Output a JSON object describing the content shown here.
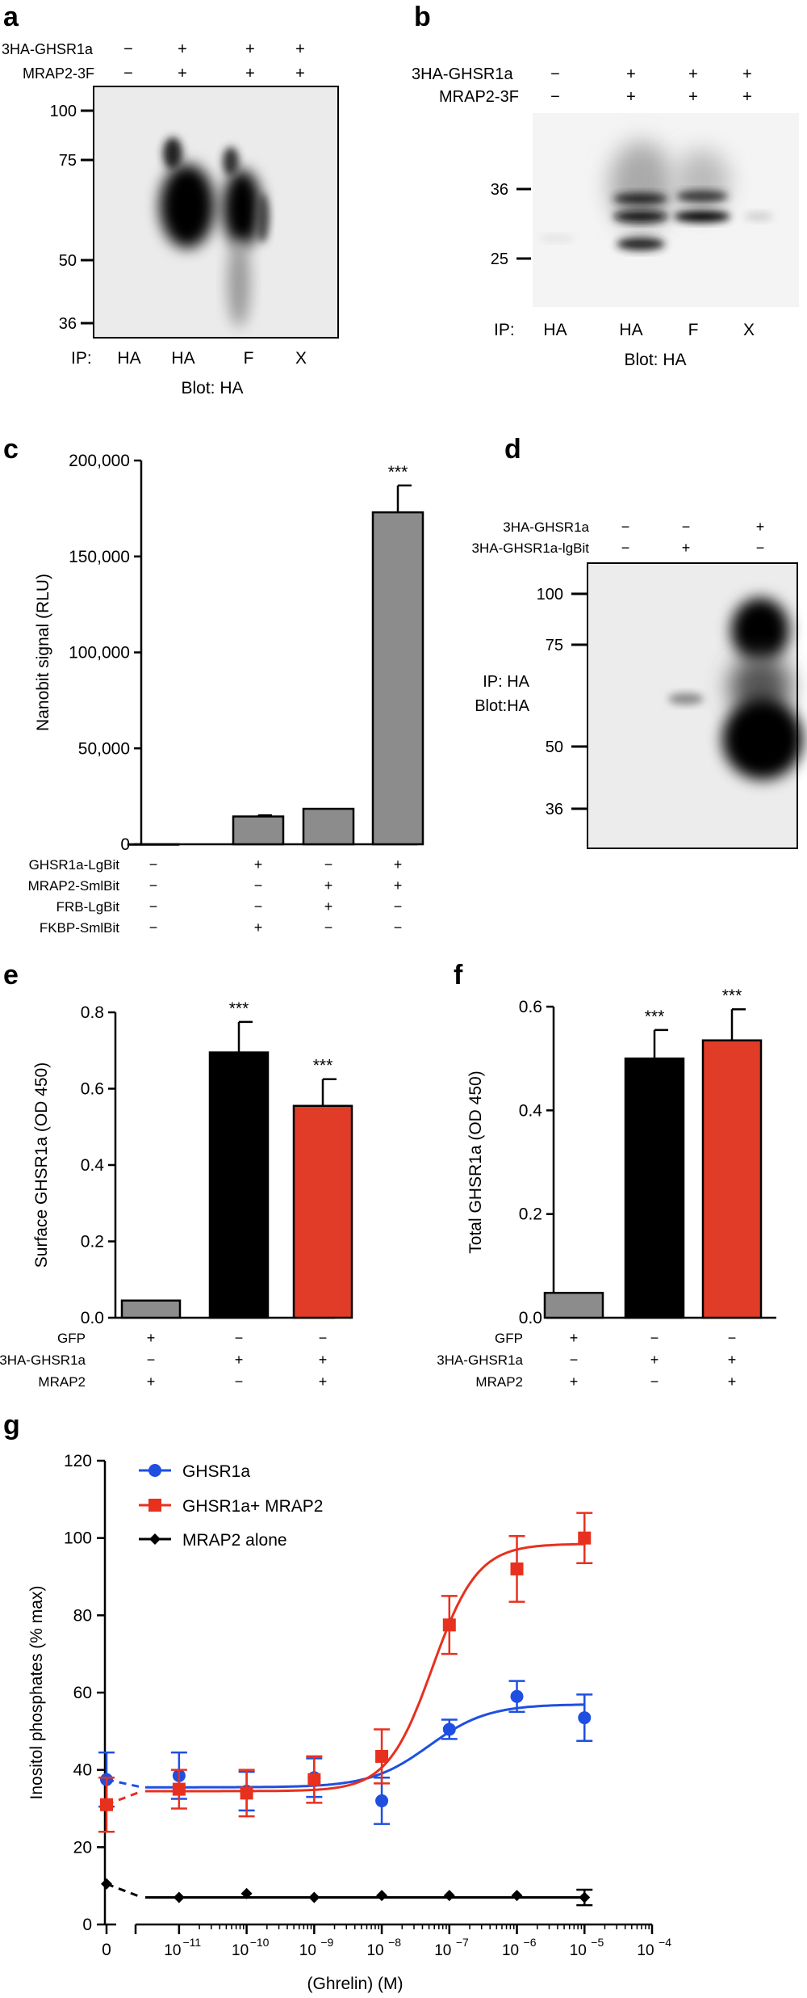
{
  "figure": {
    "panel_a": {
      "letter": "a",
      "rows": [
        {
          "label": "3HA-GHSR1a",
          "signs": [
            "−",
            "+",
            "+",
            "+"
          ]
        },
        {
          "label": "MRAP2-3F",
          "signs": [
            "−",
            "+",
            "+",
            "+"
          ]
        }
      ],
      "markers": [
        "100",
        "75",
        "50",
        "36"
      ],
      "ip_label": "IP:",
      "ip_lanes": [
        "HA",
        "HA",
        "F",
        "X"
      ],
      "blot": "Blot: HA"
    },
    "panel_b": {
      "letter": "b",
      "rows": [
        {
          "label": "3HA-GHSR1a",
          "signs": [
            "−",
            "+",
            "+",
            "+"
          ]
        },
        {
          "label": "MRAP2-3F",
          "signs": [
            "−",
            "+",
            "+",
            "+"
          ]
        }
      ],
      "markers": [
        "36",
        "25"
      ],
      "ip_label": "IP:",
      "ip_lanes": [
        "HA",
        "HA",
        "F",
        "X"
      ],
      "blot": "Blot: HA"
    },
    "panel_d": {
      "letter": "d",
      "rows": [
        {
          "label": "3HA-GHSR1a",
          "signs": [
            "−",
            "−",
            "+"
          ]
        },
        {
          "label": "3HA-GHSR1a-lgBit",
          "signs": [
            "−",
            "+",
            "−"
          ]
        }
      ],
      "markers": [
        "100",
        "75",
        "50",
        "36"
      ],
      "side_label_1": "IP: HA",
      "side_label_2": "Blot:HA"
    },
    "panel_c_letter": "c",
    "panel_e_letter": "e",
    "panel_f_letter": "f",
    "panel_g_letter": "g"
  },
  "chart_data": [
    {
      "id": "c",
      "type": "bar",
      "ylabel": "Nanobit signal (RLU)",
      "ylim": [
        0,
        200000
      ],
      "yticks": [
        0,
        50000,
        100000,
        150000,
        200000
      ],
      "ytick_labels": [
        "0",
        "50,000",
        "100,000",
        "150,000",
        "200,000"
      ],
      "values": [
        0,
        14500,
        18500,
        173000
      ],
      "errors": [
        0,
        600,
        0,
        14000
      ],
      "colors": [
        "#8c8c8c",
        "#8c8c8c",
        "#8c8c8c",
        "#8c8c8c"
      ],
      "annotations": [
        "",
        "",
        "",
        "***"
      ],
      "conditions": [
        {
          "label": "GHSR1a-LgBit",
          "signs": [
            "−",
            "+",
            "−",
            "+"
          ]
        },
        {
          "label": "MRAP2-SmlBit",
          "signs": [
            "−",
            "−",
            "+",
            "+"
          ]
        },
        {
          "label": "FRB-LgBit",
          "signs": [
            "−",
            "−",
            "+",
            "−"
          ]
        },
        {
          "label": "FKBP-SmlBit",
          "signs": [
            "−",
            "+",
            "−",
            "−"
          ]
        }
      ]
    },
    {
      "id": "e",
      "type": "bar",
      "ylabel": "Surface GHSR1a (OD 450)",
      "ylim": [
        0,
        0.8
      ],
      "yticks": [
        0,
        0.2,
        0.4,
        0.6,
        0.8
      ],
      "ytick_labels": [
        "0.0",
        "0.2",
        "0.4",
        "0.6",
        "0.8"
      ],
      "values": [
        0.045,
        0.695,
        0.555
      ],
      "errors": [
        0,
        0.08,
        0.07
      ],
      "colors": [
        "#8c8c8c",
        "#000000",
        "#e03c28"
      ],
      "annotations": [
        "",
        "***",
        "***"
      ],
      "conditions": [
        {
          "label": "GFP",
          "signs": [
            "+",
            "−",
            "−"
          ]
        },
        {
          "label": "3HA-GHSR1a",
          "signs": [
            "−",
            "+",
            "+"
          ]
        },
        {
          "label": "MRAP2",
          "signs": [
            "+",
            "−",
            "+"
          ]
        }
      ]
    },
    {
      "id": "f",
      "type": "bar",
      "ylabel": "Total GHSR1a (OD 450)",
      "ylim": [
        0,
        0.6
      ],
      "yticks": [
        0,
        0.2,
        0.4,
        0.6
      ],
      "ytick_labels": [
        "0.0",
        "0.2",
        "0.4",
        "0.6"
      ],
      "values": [
        0.048,
        0.5,
        0.535
      ],
      "errors": [
        0,
        0.055,
        0.06
      ],
      "colors": [
        "#8c8c8c",
        "#000000",
        "#e03c28"
      ],
      "annotations": [
        "",
        "***",
        "***"
      ],
      "conditions": [
        {
          "label": "GFP",
          "signs": [
            "+",
            "−",
            "−"
          ]
        },
        {
          "label": "3HA-GHSR1a",
          "signs": [
            "−",
            "+",
            "+"
          ]
        },
        {
          "label": "MRAP2",
          "signs": [
            "+",
            "−",
            "+"
          ]
        }
      ]
    },
    {
      "id": "g",
      "type": "scatter",
      "ylabel": "Inositol phosphates (% max)",
      "xlabel": "(Ghrelin) (M)",
      "ylim": [
        0,
        120
      ],
      "yticks": [
        0,
        20,
        40,
        60,
        80,
        100,
        120
      ],
      "ytick_labels": [
        "0",
        "20",
        "40",
        "60",
        "80",
        "100",
        "120"
      ],
      "x_zero_label": "0",
      "x_log_ticks": [
        -11,
        -10,
        -9,
        -8,
        -7,
        -6,
        -5,
        -4
      ],
      "x_tick_mantissa": "10",
      "x_tick_exponents": [
        "−11",
        "−10",
        "−9",
        "−8",
        "−7",
        "−6",
        "−5",
        "−4"
      ],
      "series": [
        {
          "name": "GHSR1a",
          "color": "#1f4fe0",
          "marker": "circle",
          "points": [
            {
              "x": "0",
              "y": 37.5,
              "err": 7
            },
            {
              "x": -11,
              "y": 38.5,
              "err": 6
            },
            {
              "x": -10,
              "y": 34.5,
              "err": 5
            },
            {
              "x": -9,
              "y": 38,
              "err": 5
            },
            {
              "x": -8,
              "y": 32,
              "err": 6
            },
            {
              "x": -7,
              "y": 50.5,
              "err": 2.5
            },
            {
              "x": -6,
              "y": 59,
              "err": 4
            },
            {
              "x": -5,
              "y": 53.5,
              "err": 6
            }
          ],
          "fit": {
            "bottom": 35.5,
            "top": 57,
            "logEC50": -7.3,
            "hill": 1
          }
        },
        {
          "name": "GHSR1a+ MRAP2",
          "color": "#e8301e",
          "marker": "square",
          "points": [
            {
              "x": "0",
              "y": 31,
              "err": 7
            },
            {
              "x": -11,
              "y": 35,
              "err": 5
            },
            {
              "x": -10,
              "y": 34,
              "err": 6
            },
            {
              "x": -9,
              "y": 37.5,
              "err": 6
            },
            {
              "x": -8,
              "y": 43.5,
              "err": 7
            },
            {
              "x": -7,
              "y": 77.5,
              "err": 7.5
            },
            {
              "x": -6,
              "y": 92,
              "err": 8.5
            },
            {
              "x": -5,
              "y": 100,
              "err": 6.5
            }
          ],
          "fit": {
            "bottom": 34.5,
            "top": 98.5,
            "logEC50": -7.25,
            "hill": 1.3
          }
        },
        {
          "name": "MRAP2 alone",
          "color": "#000000",
          "marker": "diamond",
          "points": [
            {
              "x": "0",
              "y": 10.5,
              "err": 0
            },
            {
              "x": -11,
              "y": 7,
              "err": 0
            },
            {
              "x": -10,
              "y": 8,
              "err": 0
            },
            {
              "x": -9,
              "y": 7,
              "err": 0
            },
            {
              "x": -8,
              "y": 7.5,
              "err": 0
            },
            {
              "x": -7,
              "y": 7.5,
              "err": 0
            },
            {
              "x": -6,
              "y": 7.5,
              "err": 0
            },
            {
              "x": -5,
              "y": 7,
              "err": 2
            }
          ],
          "fit": {
            "bottom": 7,
            "top": 7,
            "logEC50": -7,
            "hill": 1
          }
        }
      ]
    }
  ]
}
